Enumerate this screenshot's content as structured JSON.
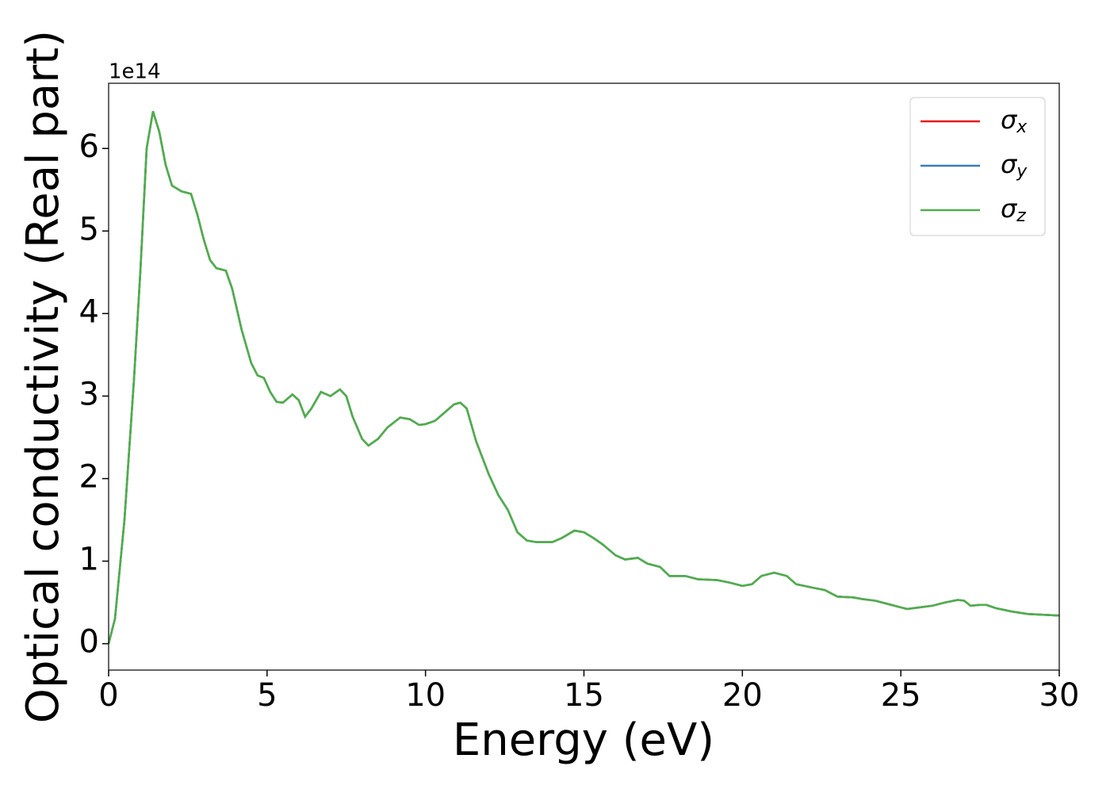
{
  "chart_data": {
    "type": "line",
    "xlabel": "Energy (eV)",
    "ylabel": "Optical conductivity (Real part)",
    "y_offset_label": "1e14",
    "x": [
      0,
      0.2,
      0.5,
      0.8,
      1.0,
      1.2,
      1.4,
      1.6,
      1.8,
      2.0,
      2.3,
      2.6,
      2.8,
      3.0,
      3.2,
      3.4,
      3.7,
      3.9,
      4.2,
      4.5,
      4.7,
      4.9,
      5.1,
      5.3,
      5.5,
      5.8,
      6.0,
      6.2,
      6.4,
      6.7,
      7.0,
      7.3,
      7.5,
      7.7,
      8.0,
      8.2,
      8.5,
      8.8,
      9.2,
      9.5,
      9.8,
      10.0,
      10.3,
      10.6,
      10.9,
      11.1,
      11.3,
      11.6,
      12.0,
      12.3,
      12.6,
      12.9,
      13.2,
      13.5,
      14.0,
      14.3,
      14.7,
      15.0,
      15.3,
      15.6,
      16.0,
      16.3,
      16.7,
      17.0,
      17.4,
      17.7,
      18.2,
      18.6,
      19.2,
      19.6,
      20.0,
      20.3,
      20.6,
      21.0,
      21.4,
      21.7,
      22.2,
      22.6,
      23.0,
      23.5,
      23.8,
      24.2,
      24.6,
      25.0,
      25.2,
      25.6,
      26.0,
      26.4,
      26.8,
      27.0,
      27.2,
      27.5,
      27.7,
      28.0,
      28.5,
      29.0,
      29.5,
      30.0
    ],
    "series": [
      {
        "name": "σx",
        "color": "#e41a1c",
        "values": [
          0,
          0.3,
          1.5,
          3.2,
          4.5,
          6.0,
          6.45,
          6.2,
          5.8,
          5.55,
          5.48,
          5.45,
          5.2,
          4.9,
          4.65,
          4.55,
          4.52,
          4.3,
          3.8,
          3.4,
          3.25,
          3.22,
          3.05,
          2.93,
          2.92,
          3.02,
          2.95,
          2.75,
          2.85,
          3.05,
          3.0,
          3.08,
          3.0,
          2.75,
          2.48,
          2.4,
          2.48,
          2.62,
          2.74,
          2.72,
          2.65,
          2.66,
          2.7,
          2.8,
          2.9,
          2.92,
          2.85,
          2.45,
          2.05,
          1.8,
          1.62,
          1.35,
          1.25,
          1.23,
          1.23,
          1.28,
          1.37,
          1.35,
          1.28,
          1.2,
          1.07,
          1.02,
          1.04,
          0.97,
          0.93,
          0.82,
          0.82,
          0.78,
          0.77,
          0.74,
          0.7,
          0.72,
          0.82,
          0.86,
          0.82,
          0.72,
          0.68,
          0.65,
          0.57,
          0.56,
          0.54,
          0.52,
          0.48,
          0.44,
          0.42,
          0.44,
          0.46,
          0.5,
          0.53,
          0.52,
          0.46,
          0.47,
          0.47,
          0.43,
          0.39,
          0.36,
          0.35,
          0.34
        ]
      },
      {
        "name": "σy",
        "color": "#377eb8",
        "values": [
          0,
          0.3,
          1.5,
          3.2,
          4.5,
          6.0,
          6.45,
          6.2,
          5.8,
          5.55,
          5.48,
          5.45,
          5.2,
          4.9,
          4.65,
          4.55,
          4.52,
          4.3,
          3.8,
          3.4,
          3.25,
          3.22,
          3.05,
          2.93,
          2.92,
          3.02,
          2.95,
          2.75,
          2.85,
          3.05,
          3.0,
          3.08,
          3.0,
          2.75,
          2.48,
          2.4,
          2.48,
          2.62,
          2.74,
          2.72,
          2.65,
          2.66,
          2.7,
          2.8,
          2.9,
          2.92,
          2.85,
          2.45,
          2.05,
          1.8,
          1.62,
          1.35,
          1.25,
          1.23,
          1.23,
          1.28,
          1.37,
          1.35,
          1.28,
          1.2,
          1.07,
          1.02,
          1.04,
          0.97,
          0.93,
          0.82,
          0.82,
          0.78,
          0.77,
          0.74,
          0.7,
          0.72,
          0.82,
          0.86,
          0.82,
          0.72,
          0.68,
          0.65,
          0.57,
          0.56,
          0.54,
          0.52,
          0.48,
          0.44,
          0.42,
          0.44,
          0.46,
          0.5,
          0.53,
          0.52,
          0.46,
          0.47,
          0.47,
          0.43,
          0.39,
          0.36,
          0.35,
          0.34
        ]
      },
      {
        "name": "σz",
        "color": "#4daf4a",
        "values": [
          0,
          0.3,
          1.5,
          3.2,
          4.5,
          6.0,
          6.45,
          6.2,
          5.8,
          5.55,
          5.48,
          5.45,
          5.2,
          4.9,
          4.65,
          4.55,
          4.52,
          4.3,
          3.8,
          3.4,
          3.25,
          3.22,
          3.05,
          2.93,
          2.92,
          3.02,
          2.95,
          2.75,
          2.85,
          3.05,
          3.0,
          3.08,
          3.0,
          2.75,
          2.48,
          2.4,
          2.48,
          2.62,
          2.74,
          2.72,
          2.65,
          2.66,
          2.7,
          2.8,
          2.9,
          2.92,
          2.85,
          2.45,
          2.05,
          1.8,
          1.62,
          1.35,
          1.25,
          1.23,
          1.23,
          1.28,
          1.37,
          1.35,
          1.28,
          1.2,
          1.07,
          1.02,
          1.04,
          0.97,
          0.93,
          0.82,
          0.82,
          0.78,
          0.77,
          0.74,
          0.7,
          0.72,
          0.82,
          0.86,
          0.82,
          0.72,
          0.68,
          0.65,
          0.57,
          0.56,
          0.54,
          0.52,
          0.48,
          0.44,
          0.42,
          0.44,
          0.46,
          0.5,
          0.53,
          0.52,
          0.46,
          0.47,
          0.47,
          0.43,
          0.39,
          0.36,
          0.35,
          0.34
        ]
      }
    ],
    "xlim": [
      0,
      30
    ],
    "xticks": [
      0,
      5,
      10,
      15,
      20,
      25,
      30
    ],
    "ylim": [
      -0.32,
      6.79
    ],
    "yticks": [
      0,
      1,
      2,
      3,
      4,
      5,
      6
    ],
    "legend": "upper right",
    "grid": false
  }
}
